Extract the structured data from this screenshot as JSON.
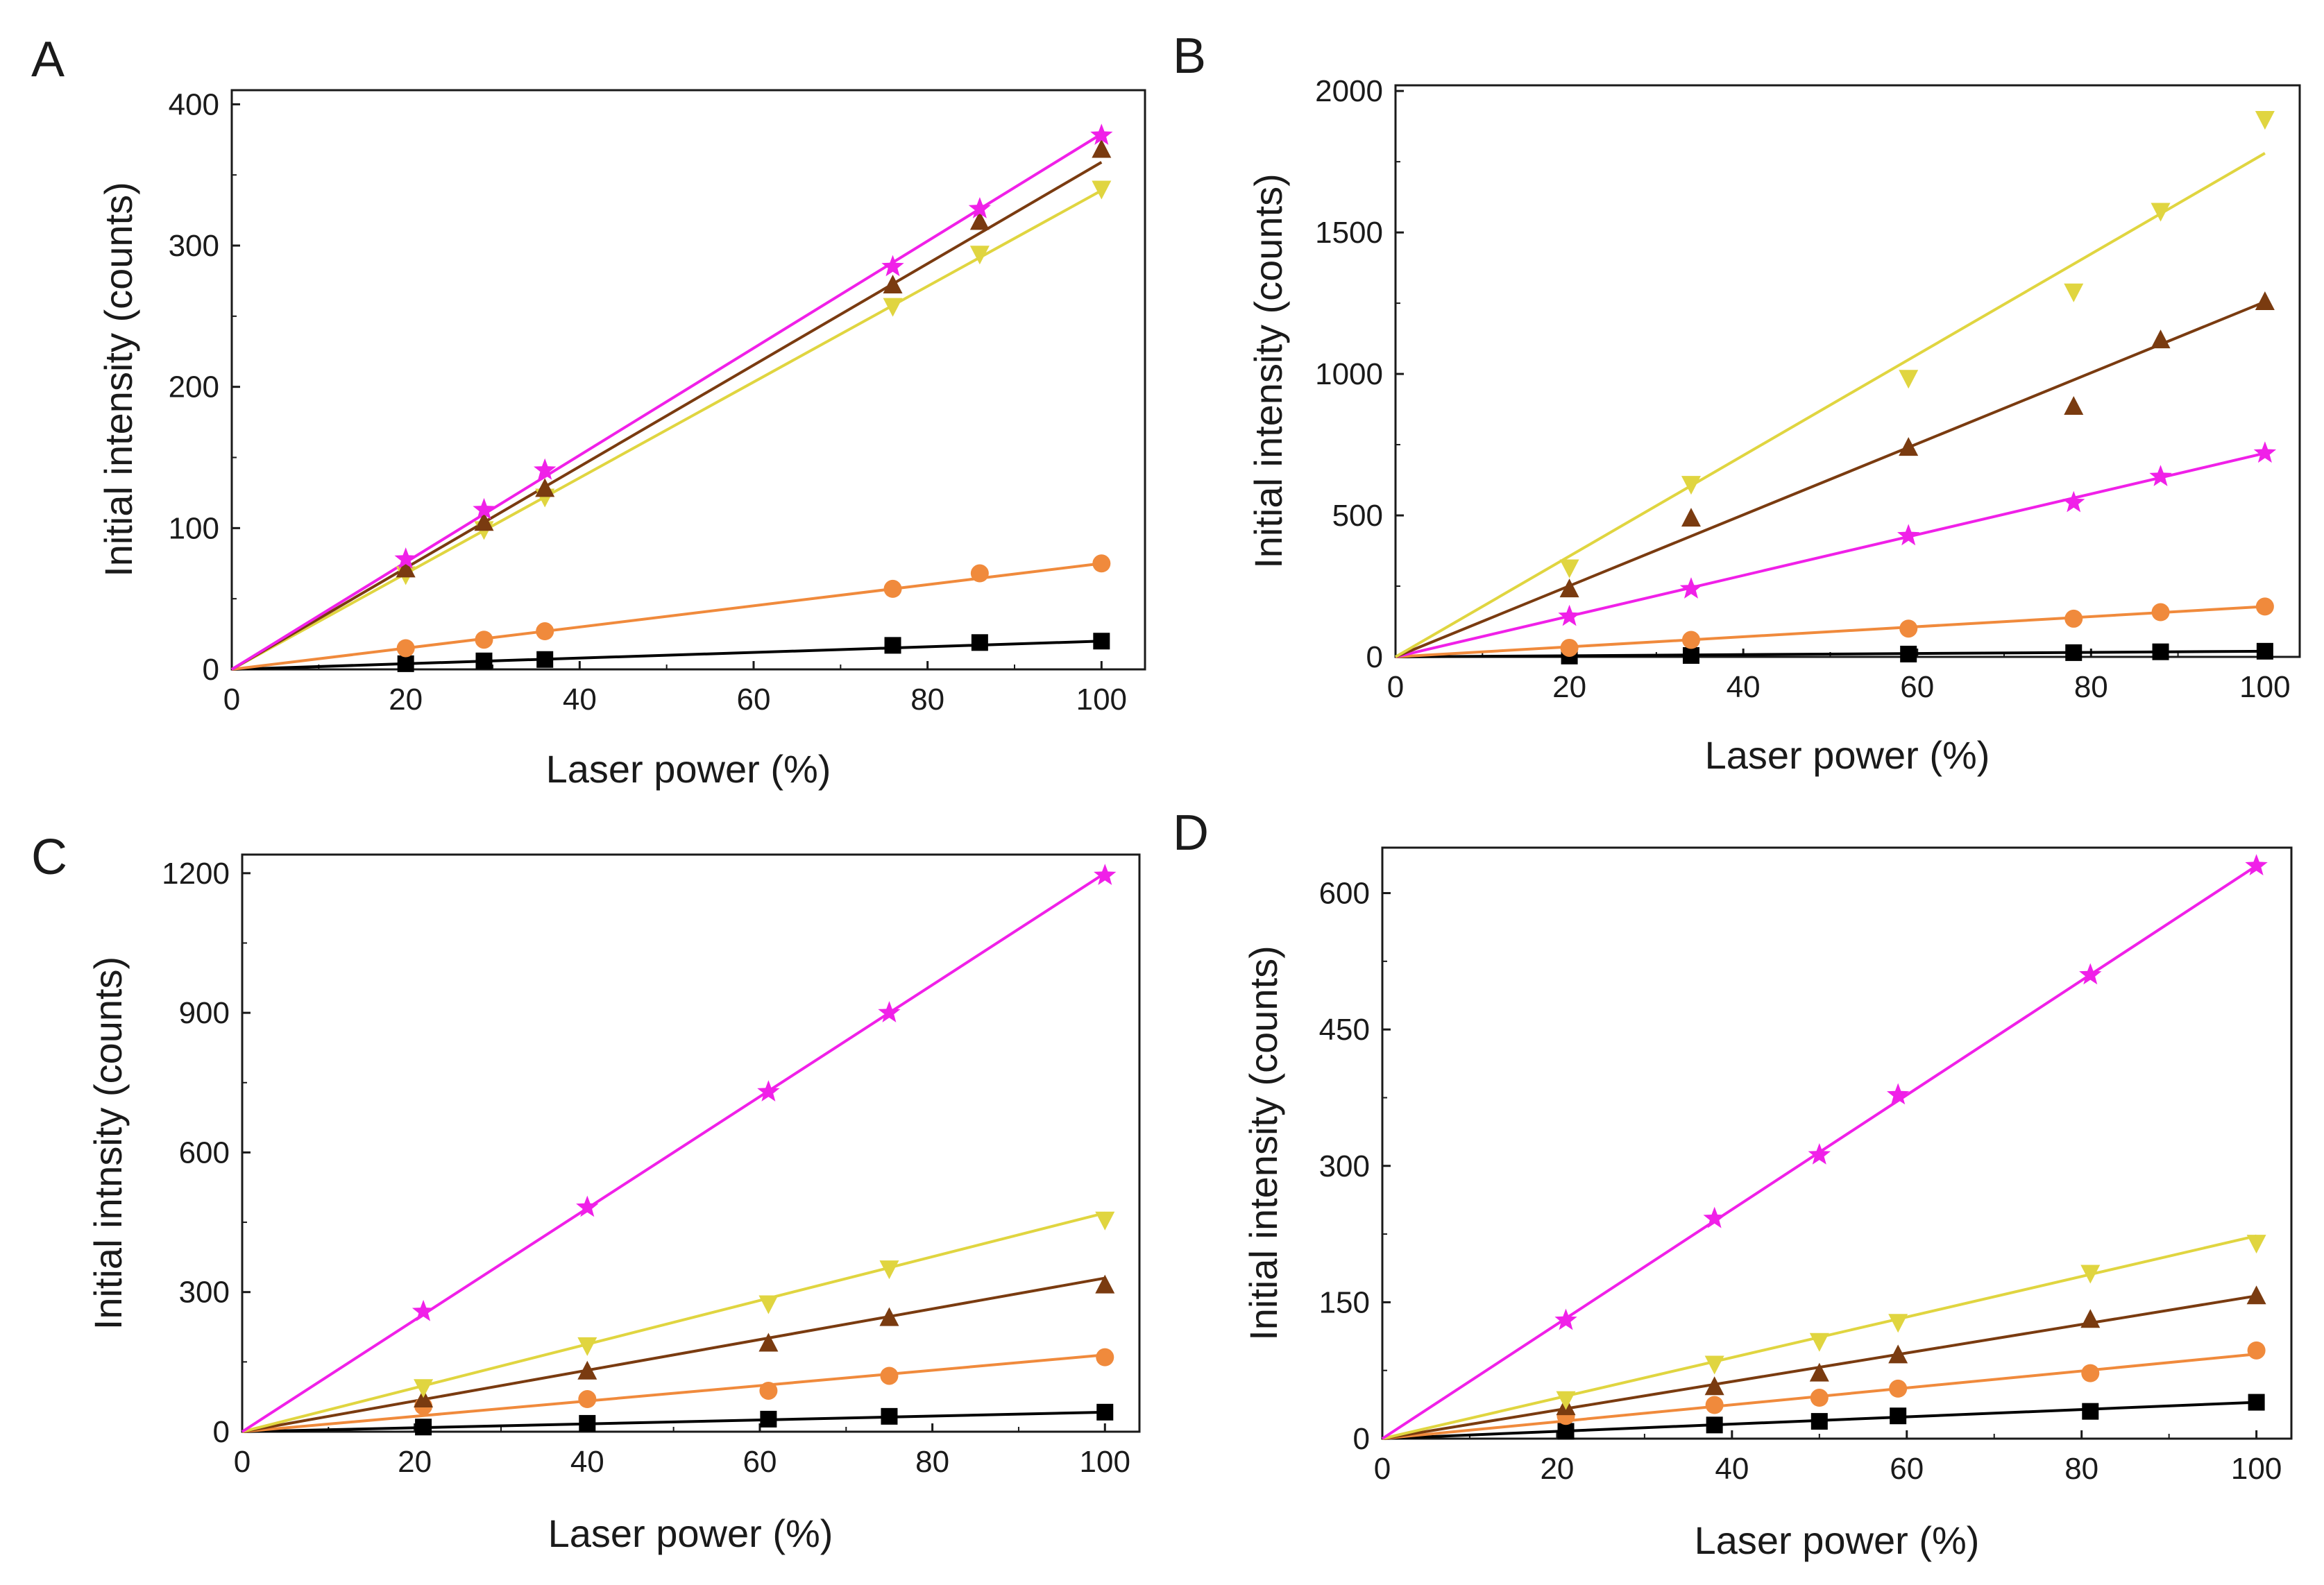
{
  "chart_data": [
    {
      "panel": "A",
      "type": "scatter",
      "xlabel": "Laser power (%)",
      "ylabel": "Initial intensity (counts)",
      "xlim": [
        0,
        105
      ],
      "ylim": [
        0,
        410
      ],
      "xticks": [
        0,
        20,
        40,
        60,
        80,
        100
      ],
      "yticks": [
        0,
        100,
        200,
        300,
        400
      ],
      "grid": false,
      "legend": "none",
      "series": [
        {
          "name": "black",
          "color": "#000000",
          "marker": "square",
          "slope": 0.2,
          "x": [
            20,
            29,
            36,
            76,
            86,
            100
          ],
          "y": [
            4,
            6,
            7,
            17,
            19,
            20
          ]
        },
        {
          "name": "orange",
          "color": "#f08a3c",
          "marker": "circle",
          "slope": 0.75,
          "x": [
            20,
            29,
            36,
            76,
            86,
            100
          ],
          "y": [
            15,
            21,
            27,
            57,
            68,
            75
          ]
        },
        {
          "name": "yellow",
          "color": "#e0d540",
          "marker": "triangle-down",
          "slope": 3.39,
          "x": [
            20,
            29,
            36,
            76,
            86,
            100
          ],
          "y": [
            67,
            99,
            122,
            257,
            294,
            340
          ]
        },
        {
          "name": "brown",
          "color": "#7a3b10",
          "marker": "triangle-up",
          "slope": 3.59,
          "x": [
            20,
            29,
            36,
            76,
            86,
            100
          ],
          "y": [
            71,
            104,
            128,
            272,
            317,
            368
          ]
        },
        {
          "name": "magenta",
          "color": "#f020e8",
          "marker": "star",
          "slope": 3.79,
          "x": [
            20,
            29,
            36,
            76,
            86,
            100
          ],
          "y": [
            78,
            113,
            141,
            285,
            326,
            378
          ]
        }
      ]
    },
    {
      "panel": "B",
      "type": "scatter",
      "xlabel": "Laser power (%)",
      "ylabel": "Initial intensity (counts)",
      "xlim": [
        0,
        104
      ],
      "ylim": [
        0,
        2020
      ],
      "xticks": [
        0,
        20,
        40,
        60,
        80,
        100
      ],
      "yticks": [
        0,
        500,
        1000,
        1500,
        2000
      ],
      "grid": false,
      "legend": "none",
      "series": [
        {
          "name": "black",
          "color": "#000000",
          "marker": "square",
          "slope": 0.2,
          "x": [
            20,
            34,
            59,
            78,
            88,
            100
          ],
          "y": [
            3,
            5,
            10,
            15,
            18,
            20
          ]
        },
        {
          "name": "orange",
          "color": "#f08a3c",
          "marker": "circle",
          "slope": 1.78,
          "x": [
            20,
            34,
            59,
            78,
            88,
            100
          ],
          "y": [
            32,
            60,
            100,
            135,
            158,
            178
          ]
        },
        {
          "name": "magenta",
          "color": "#f020e8",
          "marker": "star",
          "slope": 7.2,
          "x": [
            20,
            34,
            59,
            78,
            88,
            100
          ],
          "y": [
            143,
            240,
            428,
            545,
            637,
            720
          ]
        },
        {
          "name": "brown",
          "color": "#7a3b10",
          "marker": "triangle-up",
          "slope": 12.55,
          "x": [
            20,
            34,
            59,
            78,
            88,
            100
          ],
          "y": [
            240,
            490,
            740,
            885,
            1120,
            1255
          ]
        },
        {
          "name": "yellow",
          "color": "#e0d540",
          "marker": "triangle-down",
          "slope": 17.8,
          "x": [
            20,
            34,
            59,
            78,
            88,
            100
          ],
          "y": [
            315,
            610,
            985,
            1290,
            1575,
            1900
          ]
        }
      ]
    },
    {
      "panel": "C",
      "type": "scatter",
      "xlabel": "Laser power (%)",
      "ylabel": "Initial intnsity (counts)",
      "xlim": [
        0,
        104
      ],
      "ylim": [
        0,
        1240
      ],
      "xticks": [
        0,
        20,
        40,
        60,
        80,
        100
      ],
      "yticks": [
        0,
        300,
        600,
        900,
        1200
      ],
      "grid": false,
      "legend": "none",
      "series": [
        {
          "name": "black",
          "color": "#000000",
          "marker": "square",
          "slope": 0.42,
          "x": [
            21,
            40,
            61,
            75,
            100
          ],
          "y": [
            10,
            18,
            27,
            33,
            42
          ]
        },
        {
          "name": "orange",
          "color": "#f08a3c",
          "marker": "circle",
          "slope": 1.65,
          "x": [
            21,
            40,
            61,
            75,
            100
          ],
          "y": [
            55,
            70,
            88,
            120,
            160
          ]
        },
        {
          "name": "brown",
          "color": "#7a3b10",
          "marker": "triangle-up",
          "slope": 3.3,
          "x": [
            21,
            40,
            61,
            75,
            100
          ],
          "y": [
            70,
            130,
            190,
            245,
            315
          ]
        },
        {
          "name": "yellow",
          "color": "#e0d540",
          "marker": "triangle-down",
          "slope": 4.7,
          "x": [
            21,
            40,
            61,
            75,
            100
          ],
          "y": [
            95,
            185,
            275,
            350,
            455
          ]
        },
        {
          "name": "magenta",
          "color": "#f020e8",
          "marker": "star",
          "slope": 12.0,
          "x": [
            21,
            40,
            61,
            75,
            100
          ],
          "y": [
            258,
            482,
            730,
            900,
            1195
          ]
        }
      ]
    },
    {
      "panel": "D",
      "type": "scatter",
      "xlabel": "Laser power (%)",
      "ylabel": "Initial intensity (counts)",
      "xlim": [
        0,
        104
      ],
      "ylim": [
        0,
        650
      ],
      "xticks": [
        0,
        20,
        40,
        60,
        80,
        100
      ],
      "yticks": [
        0,
        150,
        300,
        450,
        600
      ],
      "grid": false,
      "legend": "none",
      "series": [
        {
          "name": "black",
          "color": "#000000",
          "marker": "square",
          "slope": 0.4,
          "x": [
            21,
            38,
            50,
            59,
            81,
            100
          ],
          "y": [
            8,
            15,
            19,
            25,
            30,
            40
          ]
        },
        {
          "name": "orange",
          "color": "#f08a3c",
          "marker": "circle",
          "slope": 0.93,
          "x": [
            21,
            38,
            50,
            59,
            81,
            100
          ],
          "y": [
            25,
            37,
            45,
            55,
            72,
            97
          ]
        },
        {
          "name": "brown",
          "color": "#7a3b10",
          "marker": "triangle-up",
          "slope": 1.57,
          "x": [
            21,
            38,
            50,
            59,
            81,
            100
          ],
          "y": [
            35,
            57,
            72,
            92,
            131,
            157
          ]
        },
        {
          "name": "yellow",
          "color": "#e0d540",
          "marker": "triangle-down",
          "slope": 2.23,
          "x": [
            21,
            38,
            50,
            59,
            81,
            100
          ],
          "y": [
            43,
            82,
            107,
            128,
            182,
            215
          ]
        },
        {
          "name": "magenta",
          "color": "#f020e8",
          "marker": "star",
          "slope": 6.3,
          "x": [
            21,
            38,
            50,
            59,
            81,
            100
          ],
          "y": [
            130,
            242,
            312,
            378,
            510,
            630
          ]
        }
      ]
    }
  ]
}
